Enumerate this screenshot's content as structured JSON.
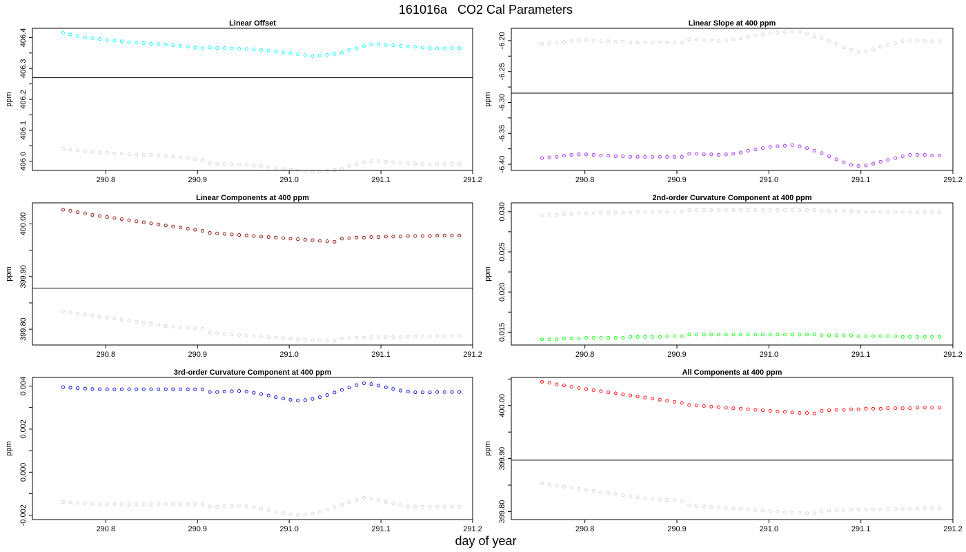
{
  "figure": {
    "title": "161016a   CO2 Cal Parameters",
    "xlabel": "day of year"
  },
  "chart_data": [
    {
      "type": "scatter",
      "title": "Linear Offset",
      "xlabel": "",
      "ylabel": "ppm",
      "xlim": [
        290.72,
        291.2
      ],
      "ylim": [
        405.97,
        406.43
      ],
      "xticks": [
        290.8,
        290.9,
        291.0,
        291.1,
        291.2
      ],
      "xtick_labels": [
        "290.8",
        "290.9",
        "291.0",
        "291.1",
        "291.2"
      ],
      "yticks": [
        406.0,
        406.1,
        406.2,
        406.3,
        406.4
      ],
      "ytick_labels": [
        "406.0",
        "406.1",
        "406.2",
        "406.3",
        "406.4"
      ],
      "hline": 406.27,
      "series": [
        {
          "color": "#00ffff",
          "start": 406.415,
          "values": [
            406.415,
            406.41,
            406.405,
            406.4,
            406.398,
            406.395,
            406.392,
            406.39,
            406.388,
            406.385,
            406.384,
            406.382,
            406.38,
            406.379,
            406.377,
            406.375,
            406.373,
            406.37,
            406.367,
            406.365,
            406.368,
            406.366,
            406.366,
            406.365,
            406.364,
            406.363,
            406.362,
            406.36,
            406.358,
            406.355,
            406.352,
            406.35,
            406.346,
            406.343,
            406.34,
            406.341,
            406.344,
            406.347,
            406.351,
            406.36,
            406.365,
            406.372,
            406.378,
            406.377,
            406.376,
            406.375,
            406.373,
            406.371,
            406.37,
            406.368,
            406.366,
            406.365,
            406.365,
            406.366,
            406.366
          ]
        },
        {
          "color": "#d3d3d3",
          "start": 406.04,
          "values": [
            406.04,
            406.038,
            406.035,
            406.032,
            406.03,
            406.028,
            406.027,
            406.025,
            406.024,
            406.023,
            406.022,
            406.021,
            406.02,
            406.019,
            406.017,
            406.015,
            406.012,
            406.01,
            406.006,
            406.003,
            405.993,
            405.992,
            405.991,
            405.99,
            405.989,
            405.988,
            405.986,
            405.984,
            405.981,
            405.978,
            405.975,
            405.972,
            405.969,
            405.966,
            405.965,
            405.966,
            405.968,
            405.971,
            405.976,
            405.985,
            405.99,
            405.996,
            406.0,
            406.0,
            405.998,
            405.997,
            405.995,
            405.993,
            405.992,
            405.991,
            405.99,
            405.99,
            405.99,
            405.991,
            405.991
          ]
        }
      ]
    },
    {
      "type": "scatter",
      "title": "Linear Slope at 400 ppm",
      "xlabel": "",
      "ylabel": "ppm",
      "xlim": [
        290.72,
        291.2
      ],
      "ylim": [
        -6.41,
        -6.18
      ],
      "xticks": [
        290.8,
        290.9,
        291.0,
        291.1,
        291.2
      ],
      "xtick_labels": [
        "290.8",
        "290.9",
        "291.0",
        "291.1",
        "291.2"
      ],
      "yticks": [
        -6.2,
        -6.25,
        -6.3,
        -6.35,
        -6.4
      ],
      "ytick_labels": [
        "-6.20",
        "-6.25",
        "-6.30",
        "-6.35",
        "-6.40"
      ],
      "hline": -6.285,
      "series": [
        {
          "color": "#d3d3d3",
          "start": -6.205,
          "values": [
            -6.205,
            -6.204,
            -6.203,
            -6.202,
            -6.2,
            -6.199,
            -6.199,
            -6.2,
            -6.201,
            -6.201,
            -6.202,
            -6.202,
            -6.203,
            -6.203,
            -6.203,
            -6.203,
            -6.203,
            -6.203,
            -6.203,
            -6.203,
            -6.198,
            -6.198,
            -6.199,
            -6.199,
            -6.2,
            -6.199,
            -6.198,
            -6.196,
            -6.194,
            -6.192,
            -6.19,
            -6.188,
            -6.187,
            -6.186,
            -6.185,
            -6.186,
            -6.189,
            -6.193,
            -6.196,
            -6.2,
            -6.205,
            -6.211,
            -6.215,
            -6.218,
            -6.217,
            -6.214,
            -6.21,
            -6.207,
            -6.204,
            -6.201,
            -6.2,
            -6.2,
            -6.2,
            -6.201,
            -6.201
          ]
        },
        {
          "color": "#a020f0",
          "start": -6.39,
          "values": [
            -6.39,
            -6.389,
            -6.388,
            -6.386,
            -6.385,
            -6.384,
            -6.384,
            -6.385,
            -6.386,
            -6.386,
            -6.387,
            -6.387,
            -6.388,
            -6.388,
            -6.388,
            -6.388,
            -6.388,
            -6.388,
            -6.388,
            -6.388,
            -6.383,
            -6.383,
            -6.384,
            -6.384,
            -6.385,
            -6.384,
            -6.383,
            -6.381,
            -6.378,
            -6.376,
            -6.374,
            -6.372,
            -6.371,
            -6.37,
            -6.369,
            -6.371,
            -6.374,
            -6.378,
            -6.382,
            -6.387,
            -6.392,
            -6.397,
            -6.401,
            -6.403,
            -6.402,
            -6.399,
            -6.396,
            -6.393,
            -6.39,
            -6.387,
            -6.385,
            -6.385,
            -6.385,
            -6.386,
            -6.386
          ]
        }
      ]
    },
    {
      "type": "scatter",
      "title": "Linear Components at 400 ppm",
      "xlabel": "",
      "ylabel": "ppm",
      "xlim": [
        290.72,
        291.2
      ],
      "ylim": [
        399.77,
        400.04
      ],
      "xticks": [
        290.8,
        290.9,
        291.0,
        291.1,
        291.2
      ],
      "xtick_labels": [
        "290.8",
        "290.9",
        "291.0",
        "291.1",
        "291.2"
      ],
      "yticks": [
        399.8,
        399.9,
        400.0
      ],
      "ytick_labels": [
        "399.80",
        "399.90",
        "400.00"
      ],
      "hline": 399.878,
      "series": [
        {
          "color": "#8b0000",
          "start": 400.027,
          "values": [
            400.027,
            400.025,
            400.022,
            400.02,
            400.017,
            400.015,
            400.013,
            400.011,
            400.009,
            400.007,
            400.005,
            400.003,
            400.001,
            399.999,
            399.997,
            399.995,
            399.993,
            399.991,
            399.989,
            399.987,
            399.983,
            399.982,
            399.981,
            399.98,
            399.979,
            399.978,
            399.977,
            399.976,
            399.975,
            399.974,
            399.973,
            399.972,
            399.971,
            399.97,
            399.969,
            399.968,
            399.967,
            399.966,
            399.972,
            399.973,
            399.974,
            399.974,
            399.975,
            399.975,
            399.976,
            399.976,
            399.976,
            399.977,
            399.977,
            399.977,
            399.977,
            399.978,
            399.978,
            399.978,
            399.978
          ]
        },
        {
          "color": "#d3d3d3",
          "start": 399.834,
          "values": [
            399.834,
            399.832,
            399.83,
            399.828,
            399.826,
            399.824,
            399.822,
            399.82,
            399.818,
            399.816,
            399.814,
            399.812,
            399.81,
            399.808,
            399.806,
            399.805,
            399.804,
            399.803,
            399.802,
            399.801,
            399.793,
            399.792,
            399.791,
            399.79,
            399.789,
            399.788,
            399.787,
            399.786,
            399.785,
            399.784,
            399.783,
            399.782,
            399.781,
            399.78,
            399.779,
            399.779,
            399.778,
            399.778,
            399.782,
            399.783,
            399.784,
            399.784,
            399.785,
            399.785,
            399.785,
            399.785,
            399.785,
            399.786,
            399.786,
            399.786,
            399.786,
            399.787,
            399.787,
            399.787,
            399.787
          ]
        }
      ]
    },
    {
      "type": "scatter",
      "title": "2nd-order Curvature Component at 400 ppm",
      "xlabel": "",
      "ylabel": "ppm",
      "xlim": [
        290.72,
        291.2
      ],
      "ylim": [
        0.0134,
        0.0311
      ],
      "xticks": [
        290.8,
        290.9,
        291.0,
        291.1,
        291.2
      ],
      "xtick_labels": [
        "290.8",
        "290.9",
        "291.0",
        "291.1",
        "291.2"
      ],
      "yticks": [
        0.015,
        0.02,
        0.025,
        0.03
      ],
      "ytick_labels": [
        "0.015",
        "0.020",
        "0.025",
        "0.030"
      ],
      "hline": null,
      "series": [
        {
          "color": "#d3d3d3",
          "start": 0.0295,
          "values": [
            0.0295,
            0.0296,
            0.0296,
            0.0297,
            0.0297,
            0.0298,
            0.0298,
            0.0298,
            0.0299,
            0.0299,
            0.0299,
            0.0299,
            0.0299,
            0.03,
            0.03,
            0.03,
            0.03,
            0.03,
            0.03,
            0.03,
            0.0302,
            0.0302,
            0.0302,
            0.0302,
            0.0302,
            0.0302,
            0.0302,
            0.0302,
            0.0302,
            0.0302,
            0.0302,
            0.0302,
            0.0302,
            0.0302,
            0.0302,
            0.0302,
            0.0302,
            0.0302,
            0.0301,
            0.0301,
            0.0301,
            0.0301,
            0.0301,
            0.03,
            0.03,
            0.03,
            0.03,
            0.03,
            0.03,
            0.03,
            0.03,
            0.0299,
            0.0299,
            0.0299,
            0.0299
          ]
        },
        {
          "color": "#00ff00",
          "start": 0.0141,
          "values": [
            0.0141,
            0.0141,
            0.0141,
            0.0142,
            0.0142,
            0.0142,
            0.0143,
            0.0143,
            0.0143,
            0.0143,
            0.0143,
            0.0143,
            0.0144,
            0.0144,
            0.0144,
            0.0144,
            0.0144,
            0.0145,
            0.0145,
            0.0145,
            0.0147,
            0.0147,
            0.0147,
            0.0147,
            0.0147,
            0.0147,
            0.0147,
            0.0147,
            0.0147,
            0.0147,
            0.0147,
            0.0147,
            0.0147,
            0.0147,
            0.0147,
            0.0147,
            0.0147,
            0.0147,
            0.0146,
            0.0146,
            0.0146,
            0.0146,
            0.0146,
            0.0145,
            0.0145,
            0.0145,
            0.0145,
            0.0145,
            0.0145,
            0.0144,
            0.0144,
            0.0144,
            0.0144,
            0.0144,
            0.0144
          ]
        }
      ]
    },
    {
      "type": "scatter",
      "title": "3rd-order Curvature Component at 400 ppm",
      "xlabel": "",
      "ylabel": "ppm",
      "xlim": [
        290.72,
        291.2
      ],
      "ylim": [
        -0.0022,
        0.0044
      ],
      "xticks": [
        290.8,
        290.9,
        291.0,
        291.1,
        291.2
      ],
      "xtick_labels": [
        "290.8",
        "290.9",
        "291.0",
        "291.1",
        "291.2"
      ],
      "yticks": [
        -0.002,
        0.0,
        0.002,
        0.004
      ],
      "ytick_labels": [
        "-0.002",
        "0.000",
        "0.002",
        "0.004"
      ],
      "hline": null,
      "series": [
        {
          "color": "#0000cd",
          "start": 0.00395,
          "values": [
            0.00395,
            0.00392,
            0.0039,
            0.00388,
            0.00386,
            0.00385,
            0.00385,
            0.00385,
            0.00385,
            0.00385,
            0.00385,
            0.00385,
            0.00385,
            0.00385,
            0.00385,
            0.00385,
            0.00385,
            0.00385,
            0.00385,
            0.00385,
            0.00372,
            0.00372,
            0.00374,
            0.00376,
            0.00377,
            0.00374,
            0.00369,
            0.00363,
            0.00356,
            0.00348,
            0.00342,
            0.00336,
            0.00333,
            0.00335,
            0.0034,
            0.00348,
            0.00358,
            0.0037,
            0.00382,
            0.00393,
            0.00404,
            0.00413,
            0.00409,
            0.00402,
            0.00394,
            0.00386,
            0.00379,
            0.00374,
            0.00371,
            0.00371,
            0.00371,
            0.00372,
            0.00372,
            0.00372,
            0.00372
          ]
        },
        {
          "color": "#d3d3d3",
          "start": -0.00138,
          "values": [
            -0.00138,
            -0.0014,
            -0.00143,
            -0.00145,
            -0.00146,
            -0.00148,
            -0.00148,
            -0.00148,
            -0.00148,
            -0.00148,
            -0.00148,
            -0.00148,
            -0.00148,
            -0.00148,
            -0.00148,
            -0.00148,
            -0.00148,
            -0.00148,
            -0.00148,
            -0.00148,
            -0.0016,
            -0.0016,
            -0.00158,
            -0.00156,
            -0.00155,
            -0.00158,
            -0.00163,
            -0.00169,
            -0.00176,
            -0.00184,
            -0.0019,
            -0.00196,
            -0.00199,
            -0.00197,
            -0.00192,
            -0.00184,
            -0.00174,
            -0.00162,
            -0.0015,
            -0.00139,
            -0.00128,
            -0.00119,
            -0.00123,
            -0.0013,
            -0.00138,
            -0.00146,
            -0.00153,
            -0.00158,
            -0.00161,
            -0.00161,
            -0.00161,
            -0.0016,
            -0.0016,
            -0.0016,
            -0.0016
          ]
        }
      ]
    },
    {
      "type": "scatter",
      "title": "All Components at 400 ppm",
      "xlabel": "",
      "ylabel": "ppm",
      "xlim": [
        290.72,
        291.2
      ],
      "ylim": [
        399.785,
        400.053
      ],
      "xticks": [
        290.8,
        290.9,
        291.0,
        291.1,
        291.2
      ],
      "xtick_labels": [
        "290.8",
        "290.9",
        "291.0",
        "291.1",
        "291.2"
      ],
      "yticks": [
        399.8,
        399.9,
        400.0
      ],
      "ytick_labels": [
        "399.80",
        "399.90",
        "400.00"
      ],
      "hline": 399.897,
      "series": [
        {
          "color": "#ff0000",
          "start": 400.045,
          "values": [
            400.045,
            400.043,
            400.04,
            400.038,
            400.035,
            400.033,
            400.031,
            400.029,
            400.027,
            400.025,
            400.023,
            400.021,
            400.019,
            400.017,
            400.015,
            400.013,
            400.011,
            400.009,
            400.007,
            400.005,
            400.001,
            400.0,
            399.999,
            399.998,
            399.997,
            399.996,
            399.995,
            399.994,
            399.993,
            399.992,
            399.991,
            399.99,
            399.989,
            399.988,
            399.987,
            399.986,
            399.986,
            399.985,
            399.99,
            399.991,
            399.992,
            399.992,
            399.993,
            399.993,
            399.994,
            399.994,
            399.994,
            399.995,
            399.995,
            399.995,
            399.995,
            399.996,
            399.996,
            399.996,
            399.996
          ]
        },
        {
          "color": "#d3d3d3",
          "start": 399.853,
          "values": [
            399.853,
            399.851,
            399.849,
            399.847,
            399.845,
            399.843,
            399.841,
            399.839,
            399.837,
            399.835,
            399.833,
            399.831,
            399.829,
            399.827,
            399.825,
            399.824,
            399.823,
            399.822,
            399.821,
            399.82,
            399.812,
            399.811,
            399.81,
            399.809,
            399.808,
            399.807,
            399.806,
            399.805,
            399.804,
            399.803,
            399.802,
            399.801,
            399.8,
            399.799,
            399.798,
            399.798,
            399.797,
            399.797,
            399.801,
            399.802,
            399.803,
            399.803,
            399.804,
            399.804,
            399.804,
            399.804,
            399.804,
            399.805,
            399.805,
            399.805,
            399.805,
            399.806,
            399.806,
            399.806,
            399.806
          ]
        }
      ]
    }
  ]
}
